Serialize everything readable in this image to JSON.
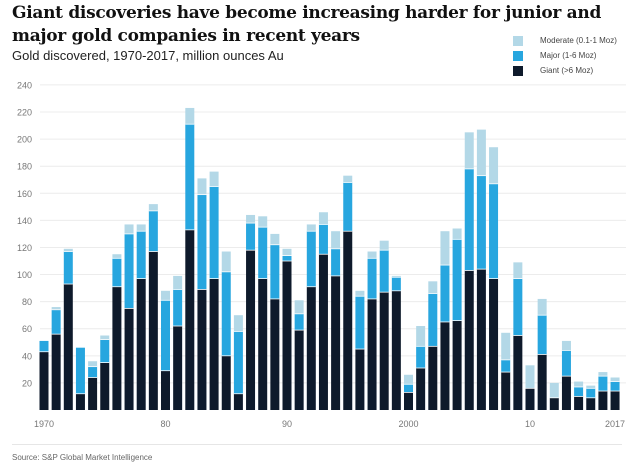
{
  "chart_data": {
    "type": "bar",
    "stacked": true,
    "title": "Giant discoveries have become increasing harder for junior and major gold companies in recent years",
    "subtitle": "Gold discovered, 1970-2017, million ounces Au",
    "xlabel": "",
    "ylabel": "",
    "ylim": [
      0,
      240
    ],
    "yticks": [
      20,
      40,
      60,
      80,
      100,
      120,
      140,
      160,
      180,
      200,
      220,
      240
    ],
    "xtick_labels": [
      {
        "year": 1970,
        "label": "1970"
      },
      {
        "year": 1980,
        "label": "80"
      },
      {
        "year": 1990,
        "label": "90"
      },
      {
        "year": 2000,
        "label": "2000"
      },
      {
        "year": 2010,
        "label": "10"
      },
      {
        "year": 2017,
        "label": "2017"
      }
    ],
    "grid": true,
    "legend_position": "top-right",
    "categories": [
      1970,
      1971,
      1972,
      1973,
      1974,
      1975,
      1976,
      1977,
      1978,
      1979,
      1980,
      1981,
      1982,
      1983,
      1984,
      1985,
      1986,
      1987,
      1988,
      1989,
      1990,
      1991,
      1992,
      1993,
      1994,
      1995,
      1996,
      1997,
      1998,
      1999,
      2000,
      2001,
      2002,
      2003,
      2004,
      2005,
      2006,
      2007,
      2008,
      2009,
      2010,
      2011,
      2012,
      2013,
      2014,
      2015,
      2016,
      2017
    ],
    "series": [
      {
        "name": "Giant (>6 Moz)",
        "color": "#0e1a2b",
        "values": [
          43,
          56,
          93,
          12,
          24,
          35,
          91,
          75,
          97,
          117,
          29,
          62,
          133,
          89,
          97,
          40,
          12,
          118,
          97,
          82,
          110,
          59,
          91,
          115,
          99,
          132,
          45,
          82,
          87,
          88,
          13,
          31,
          47,
          65,
          66,
          103,
          104,
          97,
          28,
          55,
          16,
          41,
          9,
          25,
          10,
          9,
          14,
          14
        ]
      },
      {
        "name": "Major (1-6 Moz)",
        "color": "#27a6df",
        "values": [
          8,
          18,
          24,
          34,
          8,
          17,
          21,
          55,
          35,
          30,
          52,
          27,
          78,
          70,
          68,
          62,
          46,
          20,
          38,
          40,
          4,
          12,
          41,
          22,
          20,
          36,
          39,
          30,
          31,
          10,
          6,
          16,
          39,
          42,
          60,
          75,
          69,
          70,
          9,
          42,
          0,
          29,
          0,
          19,
          7,
          7,
          11,
          7
        ]
      },
      {
        "name": "Moderate (0.1-1 Moz)",
        "color": "#b3d8e7",
        "values": [
          0,
          2,
          2,
          0,
          4,
          3,
          3,
          7,
          5,
          5,
          7,
          10,
          12,
          12,
          11,
          15,
          12,
          6,
          8,
          8,
          5,
          10,
          5,
          9,
          13,
          5,
          4,
          5,
          7,
          1,
          7,
          15,
          9,
          25,
          8,
          27,
          34,
          27,
          20,
          12,
          17,
          12,
          11,
          7,
          4,
          2,
          3,
          3
        ]
      }
    ],
    "legend_order": [
      "Moderate (0.1-1 Moz)",
      "Major (1-6 Moz)",
      "Giant (>6 Moz)"
    ],
    "source": "Source: S&P Global Market Intelligence"
  }
}
